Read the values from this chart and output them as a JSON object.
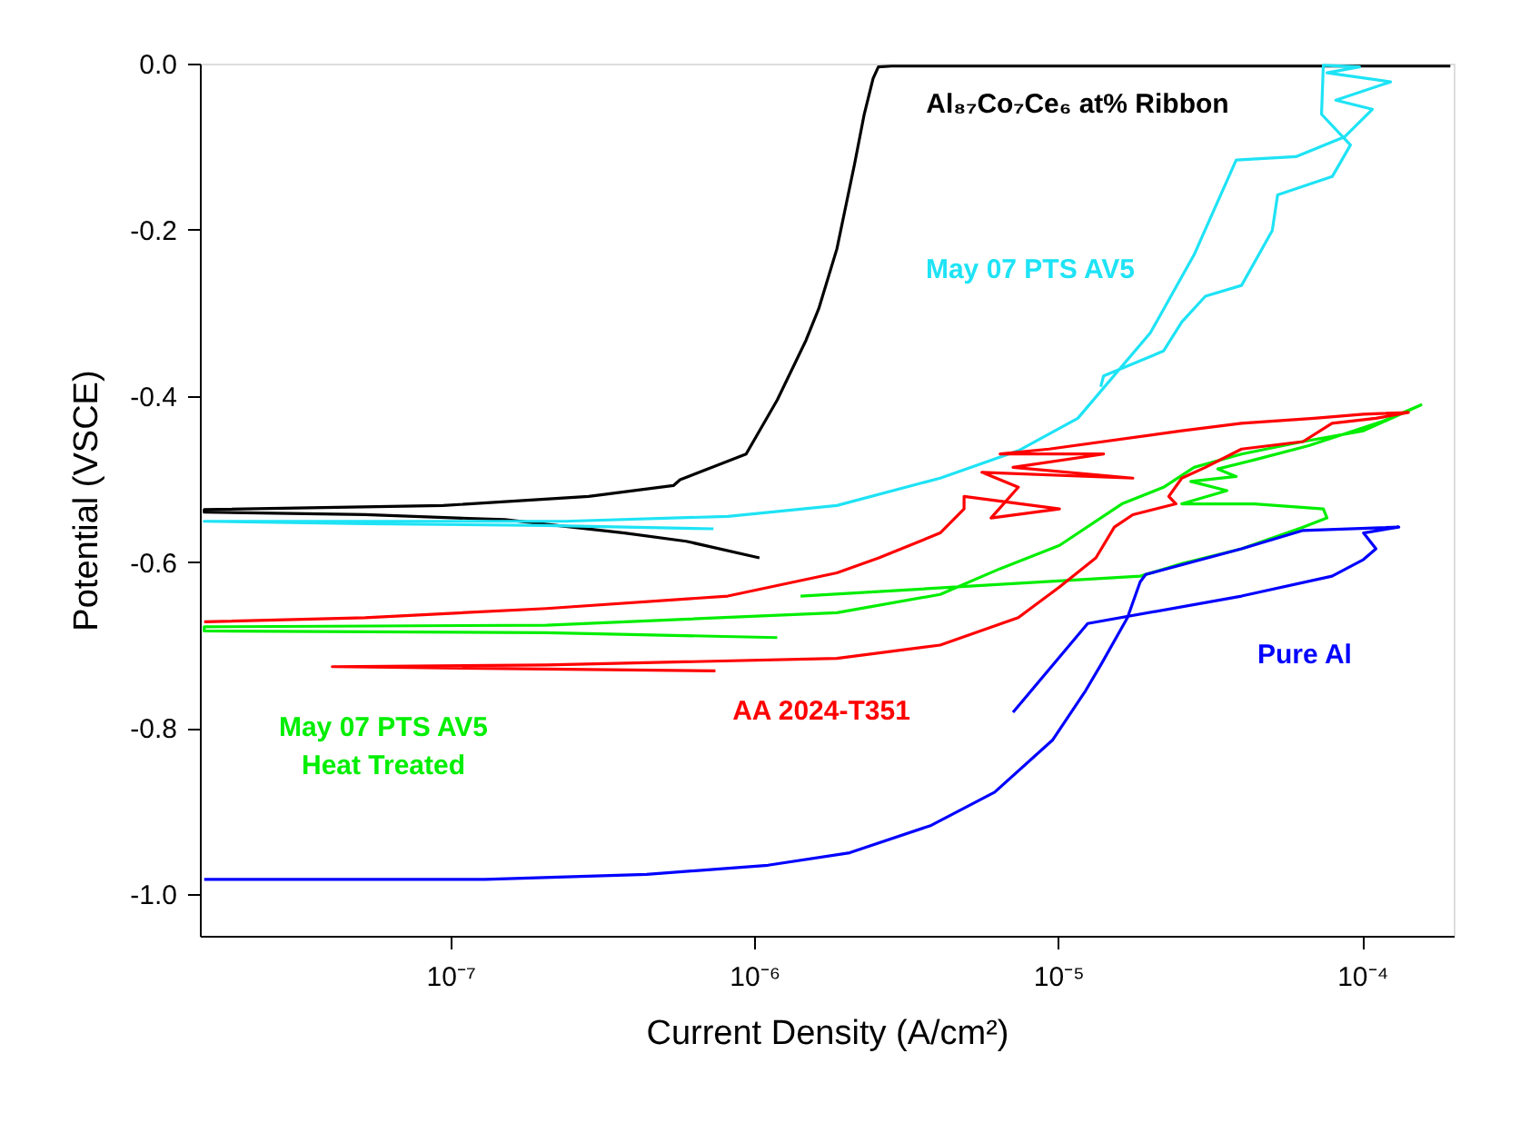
{
  "chart_data": {
    "type": "line",
    "xlabel": "Current Density (A/cm²)",
    "ylabel": "Potential (VSCE)",
    "log": "x",
    "grid": false,
    "xlim": [
      1.5e-08,
      0.0002
    ],
    "xticks": [
      {
        "value": 1e-07,
        "label": "10⁻⁷"
      },
      {
        "value": 1e-06,
        "label": "10⁻⁶"
      },
      {
        "value": 1e-05,
        "label": "10⁻⁵"
      },
      {
        "value": 0.0001,
        "label": "10⁻⁴"
      }
    ],
    "ylim": [
      -1.05,
      0
    ],
    "yticks": [
      {
        "value": -1.0,
        "label": "-1.0"
      },
      {
        "value": -0.8,
        "label": "-0.8"
      },
      {
        "value": -0.6,
        "label": "-0.6"
      },
      {
        "value": -0.4,
        "label": "-0.4"
      },
      {
        "value": -0.2,
        "label": "-0.2"
      },
      {
        "value": 0,
        "label": "0.0"
      }
    ],
    "series": [
      {
        "name": "Al₈₇Co₇Ce₆ at% Ribbon",
        "color": "#000000",
        "x": [
          1.04e-06,
          5.97e-07,
          3.74e-07,
          1.51e-07,
          5.24e-08,
          1.55e-08,
          1.55e-08,
          9.47e-08,
          2.85e-07,
          5.42e-07,
          5.7e-07,
          9.4e-07,
          1.19e-06,
          1.48e-06,
          1.63e-06,
          1.87e-06,
          2.14e-06,
          2.3e-06,
          2.46e-06,
          2.56e-06,
          2.83e-06,
          0.000195
        ],
        "values": [
          -0.595,
          -0.575,
          -0.565,
          -0.549,
          -0.543,
          -0.54,
          -0.537,
          -0.532,
          -0.521,
          -0.508,
          -0.501,
          -0.47,
          -0.405,
          -0.333,
          -0.295,
          -0.223,
          -0.12,
          -0.061,
          -0.018,
          -0.004,
          -0.003,
          -0.003
        ]
      },
      {
        "name": "May 07 PTS AV5",
        "color": "#1ee3f5",
        "x": [
          7.34e-07,
          2.07e-07,
          5.24e-08,
          1.55e-08,
          2.38e-07,
          8.18e-07,
          1.87e-06,
          4.09e-06,
          7.39e-06,
          1.16e-05,
          2.01e-05,
          2.8e-05,
          3.85e-05,
          6.05e-05,
          8.77e-05,
          0.000108,
          8.19e-05,
          0.000124,
          7.66e-05,
          9.8e-05,
          7.45e-05,
          7.35e-05,
          9.15e-05,
          7.97e-05,
          5.27e-05,
          5.06e-05,
          4.01e-05,
          3.05e-05,
          2.55e-05,
          2.22e-05,
          1.41e-05,
          1.38e-05
        ],
        "values": [
          -0.56,
          -0.556,
          -0.554,
          -0.551,
          -0.551,
          -0.545,
          -0.532,
          -0.499,
          -0.466,
          -0.427,
          -0.324,
          -0.23,
          -0.116,
          -0.112,
          -0.088,
          -0.055,
          -0.044,
          -0.022,
          -0.011,
          -0.004,
          -0.002,
          -0.061,
          -0.098,
          -0.136,
          -0.158,
          -0.201,
          -0.267,
          -0.28,
          -0.311,
          -0.346,
          -0.376,
          -0.389
        ]
      },
      {
        "name": "May 07 PTS AV5\nHeat Treated",
        "color": "#00ee00",
        "x": [
          1.19e-06,
          2.07e-07,
          1.55e-08,
          1.55e-08,
          2.07e-07,
          1.87e-06,
          4.09e-06,
          6.44e-06,
          1.01e-05,
          1.62e-05,
          2.22e-05,
          2.8e-05,
          4.01e-05,
          6.39e-05,
          0.000101,
          0.000156,
          0.000116,
          6.67e-05,
          4.42e-05,
          3.35e-05,
          3.85e-05,
          2.73e-05,
          3.59e-05,
          2.55e-05,
          4.42e-05,
          7.45e-05,
          7.66e-05,
          6.39e-05,
          4.01e-05,
          2.55e-05,
          1.86e-05,
          1.42e-06
        ],
        "values": [
          -0.691,
          -0.685,
          -0.683,
          -0.678,
          -0.676,
          -0.661,
          -0.639,
          -0.608,
          -0.58,
          -0.53,
          -0.51,
          -0.486,
          -0.47,
          -0.455,
          -0.442,
          -0.411,
          -0.431,
          -0.46,
          -0.477,
          -0.488,
          -0.497,
          -0.503,
          -0.514,
          -0.53,
          -0.53,
          -0.536,
          -0.547,
          -0.558,
          -0.584,
          -0.602,
          -0.617,
          -0.641
        ]
      },
      {
        "name": "AA 2024-T351",
        "color": "#ff0000",
        "x": [
          1.55e-08,
          5.24e-08,
          2.07e-07,
          8.18e-07,
          1.87e-06,
          2.57e-06,
          4.09e-06,
          4.9e-06,
          4.9e-06,
          1.01e-05,
          6.01e-06,
          7.39e-06,
          5.61e-06,
          1.76e-05,
          7.1e-06,
          1.41e-05,
          6.44e-06,
          9.33e-06,
          2.55e-05,
          4.01e-05,
          6.95e-05,
          0.000101,
          0.000142,
          0.000111,
          7.96e-05,
          6.39e-05,
          4.01e-05,
          3.05e-05,
          2.55e-05,
          2.31e-05,
          2.44e-05,
          1.76e-05,
          1.53e-05,
          1.33e-05,
          1.01e-05,
          7.39e-06,
          4.09e-06,
          1.87e-06,
          2.07e-07,
          4.09e-08,
          7.45e-07
        ],
        "values": [
          -0.672,
          -0.667,
          -0.656,
          -0.641,
          -0.613,
          -0.595,
          -0.565,
          -0.536,
          -0.521,
          -0.536,
          -0.547,
          -0.51,
          -0.492,
          -0.499,
          -0.486,
          -0.47,
          -0.47,
          -0.464,
          -0.442,
          -0.433,
          -0.427,
          -0.422,
          -0.42,
          -0.427,
          -0.433,
          -0.455,
          -0.464,
          -0.486,
          -0.499,
          -0.521,
          -0.53,
          -0.543,
          -0.558,
          -0.595,
          -0.63,
          -0.667,
          -0.7,
          -0.716,
          -0.724,
          -0.726,
          -0.731
        ]
      },
      {
        "name": "Pure Al",
        "color": "#0000ff",
        "x": [
          1.55e-08,
          1.3e-07,
          4.42e-07,
          1.11e-06,
          2.06e-06,
          3.82e-06,
          6.18e-06,
          9.6e-06,
          1.23e-05,
          1.39e-05,
          1.69e-05,
          1.86e-05,
          1.94e-05,
          4.01e-05,
          6.39e-05,
          0.000132,
          0.000101,
          0.000111,
          0.000101,
          7.96e-05,
          4.01e-05,
          1.25e-05,
          7.1e-06
        ],
        "values": [
          -0.982,
          -0.982,
          -0.976,
          -0.965,
          -0.95,
          -0.917,
          -0.877,
          -0.814,
          -0.755,
          -0.722,
          -0.667,
          -0.624,
          -0.615,
          -0.584,
          -0.562,
          -0.558,
          -0.565,
          -0.584,
          -0.597,
          -0.617,
          -0.641,
          -0.674,
          -0.781
        ]
      }
    ]
  }
}
